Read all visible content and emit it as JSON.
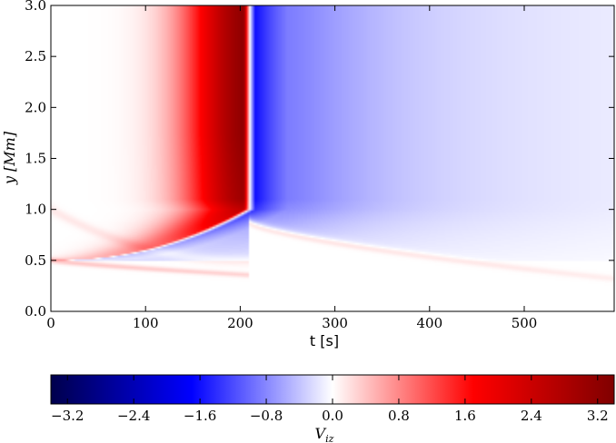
{
  "chart_data": {
    "type": "heatmap",
    "xlabel": "t [s]",
    "ylabel": "y [Mm]",
    "xlim": [
      0,
      595
    ],
    "ylim": [
      0.0,
      3.0
    ],
    "x_ticks": [
      "0",
      "100",
      "200",
      "300",
      "400",
      "500"
    ],
    "y_ticks": [
      "0.0",
      "0.5",
      "1.0",
      "1.5",
      "2.0",
      "2.5",
      "3.0"
    ],
    "colorbar": {
      "label": "V_iz",
      "label_main": "V",
      "label_sub": "iz",
      "range": [
        -3.4,
        3.4
      ],
      "ticks": [
        "−3.2",
        "−2.4",
        "−1.6",
        "−0.8",
        "0.0",
        "0.8",
        "1.6",
        "2.4",
        "3.2"
      ],
      "colormap": "seismic",
      "colors": [
        "#00004c",
        "#0000ff",
        "#ffffff",
        "#ff0000",
        "#800000"
      ]
    },
    "features": [
      {
        "name": "strong-positive-band",
        "t_range": [
          150,
          208
        ],
        "y_range": [
          0.9,
          3.0
        ],
        "peak": 3.2
      },
      {
        "name": "strong-negative-band",
        "t_range": [
          212,
          290
        ],
        "y_range": [
          0.9,
          3.0
        ],
        "peak": -1.8
      },
      {
        "name": "decaying-negative-tail",
        "t_range": [
          290,
          595
        ],
        "peak": -0.5
      },
      {
        "name": "weak-lower-branch",
        "t_range": [
          0,
          595
        ],
        "y_from": 0.5,
        "y_to": 0.17,
        "peak": 0.4
      }
    ]
  }
}
